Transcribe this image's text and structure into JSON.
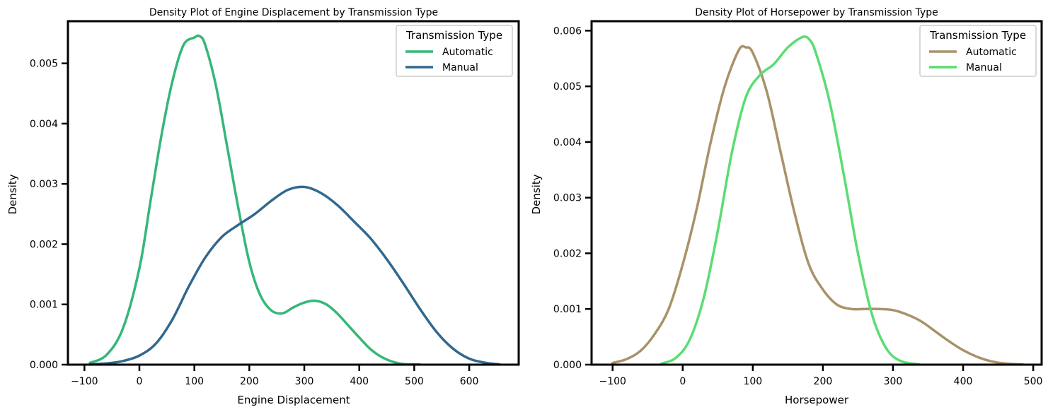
{
  "chart_data": [
    {
      "type": "line",
      "title": "Density Plot of Engine Displacement by Transmission Type",
      "xlabel": "Engine Displacement",
      "ylabel": "Density",
      "xlim": [
        -130,
        690
      ],
      "ylim": [
        0,
        0.0057
      ],
      "xticks": [
        -100,
        0,
        100,
        200,
        300,
        400,
        500,
        600
      ],
      "xtick_labels": [
        "−100",
        "0",
        "100",
        "200",
        "300",
        "400",
        "500",
        "600"
      ],
      "yticks": [
        0,
        0.001,
        0.002,
        0.003,
        0.004,
        0.005
      ],
      "ytick_labels": [
        "0.000",
        "0.001",
        "0.002",
        "0.003",
        "0.004",
        "0.005"
      ],
      "grid": false,
      "legend": {
        "title": "Transmission Type",
        "placement": "top-right"
      },
      "series": [
        {
          "name": "Automatic",
          "color": "#35b779",
          "x": [
            -90,
            -60,
            -30,
            0,
            20,
            40,
            60,
            80,
            100,
            110,
            120,
            140,
            160,
            180,
            200,
            220,
            240,
            260,
            280,
            300,
            320,
            340,
            360,
            380,
            400,
            420,
            440,
            460,
            480,
            510
          ],
          "y": [
            3e-05,
            0.00016,
            0.0006,
            0.0016,
            0.0027,
            0.0038,
            0.0047,
            0.0053,
            0.00543,
            0.00545,
            0.0053,
            0.0046,
            0.0036,
            0.0026,
            0.0017,
            0.00115,
            0.0009,
            0.00085,
            0.00095,
            0.00103,
            0.00106,
            0.001,
            0.00085,
            0.00065,
            0.00045,
            0.00026,
            0.00013,
            5e-05,
            1e-05,
            2e-06
          ]
        },
        {
          "name": "Manual",
          "color": "#31688e",
          "x": [
            -90,
            -60,
            -30,
            0,
            30,
            60,
            90,
            120,
            150,
            180,
            210,
            240,
            270,
            300,
            330,
            360,
            390,
            420,
            450,
            480,
            510,
            540,
            570,
            600,
            630,
            655
          ],
          "y": [
            5e-06,
            2e-05,
            6e-05,
            0.00015,
            0.00035,
            0.00075,
            0.0013,
            0.00178,
            0.00212,
            0.00232,
            0.0025,
            0.00272,
            0.0029,
            0.00295,
            0.00285,
            0.00265,
            0.00238,
            0.0021,
            0.00175,
            0.00135,
            0.00093,
            0.00055,
            0.00027,
            0.0001,
            3e-05,
            5e-06
          ]
        }
      ]
    },
    {
      "type": "line",
      "title": "Density Plot of Horsepower by Transmission Type",
      "xlabel": "Horsepower",
      "ylabel": "Density",
      "xlim": [
        -130,
        512
      ],
      "ylim": [
        0,
        0.00617
      ],
      "xticks": [
        -100,
        0,
        100,
        200,
        300,
        400,
        500
      ],
      "xtick_labels": [
        "−100",
        "0",
        "100",
        "200",
        "300",
        "400",
        "500"
      ],
      "yticks": [
        0,
        0.001,
        0.002,
        0.003,
        0.004,
        0.005,
        0.006
      ],
      "ytick_labels": [
        "0.000",
        "0.001",
        "0.002",
        "0.003",
        "0.004",
        "0.005",
        "0.006"
      ],
      "grid": false,
      "legend": {
        "title": "Transmission Type",
        "placement": "top-right"
      },
      "series": [
        {
          "name": "Automatic",
          "color": "#a89268",
          "x": [
            -100,
            -80,
            -60,
            -40,
            -20,
            0,
            20,
            40,
            60,
            80,
            90,
            100,
            120,
            140,
            160,
            180,
            200,
            220,
            240,
            260,
            280,
            300,
            320,
            340,
            360,
            380,
            400,
            420,
            440,
            460,
            485
          ],
          "y": [
            3e-05,
            0.0001,
            0.00025,
            0.00055,
            0.001,
            0.0018,
            0.0028,
            0.004,
            0.005,
            0.00565,
            0.0057,
            0.0056,
            0.0049,
            0.0038,
            0.0027,
            0.0018,
            0.00135,
            0.00108,
            0.001,
            0.001,
            0.001,
            0.00098,
            0.0009,
            0.00078,
            0.0006,
            0.00042,
            0.00026,
            0.00014,
            6e-05,
            2e-05,
            3e-06
          ]
        },
        {
          "name": "Manual",
          "color": "#5bdc74",
          "x": [
            -30,
            -10,
            10,
            30,
            50,
            70,
            90,
            110,
            130,
            150,
            170,
            180,
            190,
            210,
            230,
            250,
            270,
            290,
            310,
            337
          ],
          "y": [
            2e-05,
            0.00012,
            0.00045,
            0.0012,
            0.0024,
            0.0038,
            0.0048,
            0.0052,
            0.0054,
            0.0057,
            0.00588,
            0.00585,
            0.0056,
            0.0047,
            0.0034,
            0.002,
            0.0009,
            0.0003,
            7e-05,
            5e-06
          ]
        }
      ]
    }
  ]
}
